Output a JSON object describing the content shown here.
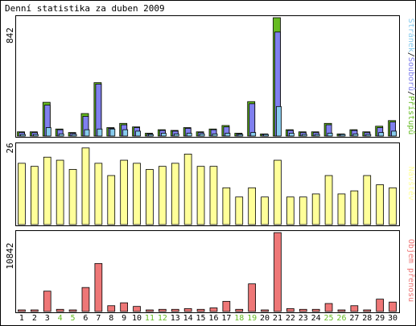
{
  "title": "Denní statistika za duben 2009",
  "colors": {
    "pages": "#66bb22",
    "files": "#8080ee",
    "hits": "#88ccee",
    "visits": "#ffff99",
    "volume": "#ee7777",
    "weekend_label": "#66bb22",
    "weekday_label": "#000000",
    "border": "#000000",
    "background": "#ffffff"
  },
  "chart_data": [
    {
      "type": "bar",
      "panel": "top",
      "ylabel_value": "842",
      "legend": [
        "Stránek",
        "Souborů",
        "Přístupů"
      ],
      "categories": [
        "1",
        "2",
        "3",
        "4",
        "5",
        "6",
        "7",
        "8",
        "9",
        "10",
        "11",
        "12",
        "13",
        "14",
        "15",
        "16",
        "17",
        "18",
        "19",
        "20",
        "21",
        "22",
        "23",
        "24",
        "25",
        "26",
        "27",
        "28",
        "29",
        "30"
      ],
      "series": [
        {
          "name": "Přístupů",
          "values": [
            30,
            30,
            240,
            50,
            25,
            160,
            380,
            60,
            90,
            65,
            20,
            45,
            40,
            60,
            30,
            50,
            75,
            20,
            245,
            15,
            842,
            45,
            30,
            30,
            90,
            15,
            45,
            30,
            70,
            110
          ]
        },
        {
          "name": "Souborů",
          "values": [
            25,
            25,
            220,
            45,
            20,
            140,
            370,
            55,
            80,
            60,
            15,
            40,
            35,
            55,
            25,
            45,
            65,
            15,
            230,
            10,
            740,
            40,
            25,
            25,
            80,
            10,
            40,
            25,
            60,
            100
          ]
        },
        {
          "name": "Stránek",
          "values": [
            10,
            10,
            60,
            15,
            10,
            45,
            50,
            50,
            45,
            35,
            5,
            20,
            15,
            20,
            15,
            15,
            20,
            5,
            25,
            5,
            210,
            20,
            10,
            10,
            20,
            5,
            15,
            10,
            25,
            35
          ]
        }
      ],
      "ylim": [
        0,
        842
      ]
    },
    {
      "type": "bar",
      "panel": "middle",
      "ylabel_value": "26",
      "legend": [
        "Návštěv"
      ],
      "categories": [
        "1",
        "2",
        "3",
        "4",
        "5",
        "6",
        "7",
        "8",
        "9",
        "10",
        "11",
        "12",
        "13",
        "14",
        "15",
        "16",
        "17",
        "18",
        "19",
        "20",
        "21",
        "22",
        "23",
        "24",
        "25",
        "26",
        "27",
        "28",
        "29",
        "30"
      ],
      "series": [
        {
          "name": "Návštěv",
          "values": [
            20,
            19,
            22,
            21,
            18,
            25,
            20,
            16,
            21,
            20,
            18,
            19,
            20,
            23,
            19,
            19,
            12,
            9,
            12,
            9,
            21,
            9,
            9,
            10,
            16,
            10,
            11,
            16,
            13,
            12
          ]
        }
      ],
      "ylim": [
        0,
        26
      ]
    },
    {
      "type": "bar",
      "panel": "bottom",
      "ylabel_value": "10842",
      "legend": [
        "Objem přenosu"
      ],
      "categories": [
        "1",
        "2",
        "3",
        "4",
        "5",
        "6",
        "7",
        "8",
        "9",
        "10",
        "11",
        "12",
        "13",
        "14",
        "15",
        "16",
        "17",
        "18",
        "19",
        "20",
        "21",
        "22",
        "23",
        "24",
        "25",
        "26",
        "27",
        "28",
        "29",
        "30"
      ],
      "series": [
        {
          "name": "Objem přenosu",
          "values": [
            200,
            200,
            2800,
            300,
            200,
            3300,
            6600,
            800,
            1200,
            700,
            200,
            300,
            300,
            400,
            300,
            500,
            1400,
            300,
            3800,
            200,
            10842,
            400,
            300,
            300,
            1100,
            200,
            800,
            200,
            1700,
            1300
          ]
        }
      ],
      "ylim": [
        0,
        10842
      ]
    }
  ],
  "x_labels": [
    "1",
    "2",
    "3",
    "4",
    "5",
    "6",
    "7",
    "8",
    "9",
    "10",
    "11",
    "12",
    "13",
    "14",
    "15",
    "16",
    "17",
    "18",
    "19",
    "20",
    "21",
    "22",
    "23",
    "24",
    "25",
    "26",
    "27",
    "28",
    "29",
    "30"
  ],
  "weekend_days": [
    "4",
    "5",
    "11",
    "12",
    "18",
    "19",
    "25",
    "26"
  ]
}
